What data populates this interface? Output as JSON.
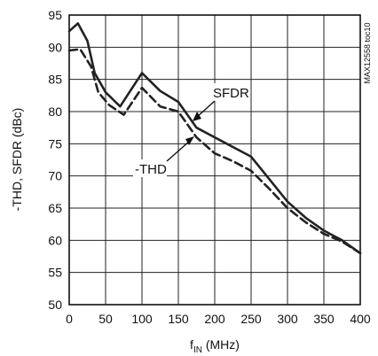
{
  "chart_data": {
    "type": "line",
    "title": "",
    "xlabel_main": "f",
    "xlabel_sub": "IN",
    "xlabel_rest": " (MHz)",
    "ylabel": "-THD, SFDR (dBc)",
    "watermark": "MAX12558 toc10",
    "xlim": [
      0,
      400
    ],
    "ylim": [
      50,
      95
    ],
    "x_ticks": [
      0,
      50,
      100,
      150,
      200,
      250,
      300,
      350,
      400
    ],
    "y_ticks": [
      50,
      55,
      60,
      65,
      70,
      75,
      80,
      85,
      90,
      95
    ],
    "grid": true,
    "series": [
      {
        "name": "SFDR",
        "style": "solid",
        "color": "#222222",
        "points": [
          [
            0,
            92.5
          ],
          [
            12,
            93.7
          ],
          [
            25,
            91.0
          ],
          [
            35,
            86.0
          ],
          [
            50,
            83.0
          ],
          [
            70,
            80.8
          ],
          [
            100,
            86.0
          ],
          [
            125,
            83.2
          ],
          [
            150,
            81.5
          ],
          [
            175,
            77.5
          ],
          [
            200,
            76.0
          ],
          [
            225,
            74.5
          ],
          [
            250,
            73.0
          ],
          [
            275,
            69.5
          ],
          [
            300,
            66.0
          ],
          [
            325,
            63.5
          ],
          [
            350,
            61.5
          ],
          [
            375,
            60.0
          ],
          [
            400,
            58.0
          ]
        ]
      },
      {
        "name": "-THD",
        "style": "dashed",
        "color": "#222222",
        "points": [
          [
            0,
            89.5
          ],
          [
            15,
            89.7
          ],
          [
            30,
            87.0
          ],
          [
            40,
            83.0
          ],
          [
            55,
            81.0
          ],
          [
            75,
            79.5
          ],
          [
            100,
            83.7
          ],
          [
            125,
            80.8
          ],
          [
            150,
            80.0
          ],
          [
            175,
            76.0
          ],
          [
            200,
            73.5
          ],
          [
            225,
            72.3
          ],
          [
            250,
            70.8
          ],
          [
            275,
            68.0
          ],
          [
            300,
            65.0
          ],
          [
            325,
            62.8
          ],
          [
            350,
            61.0
          ],
          [
            375,
            59.8
          ],
          [
            400,
            58.0
          ]
        ]
      }
    ],
    "annotations": [
      {
        "text": "SFDR",
        "points_to_x": 175,
        "points_to_y": 78.0
      },
      {
        "text": "-THD",
        "points_to_x": 205,
        "points_to_y": 77.0
      }
    ]
  }
}
